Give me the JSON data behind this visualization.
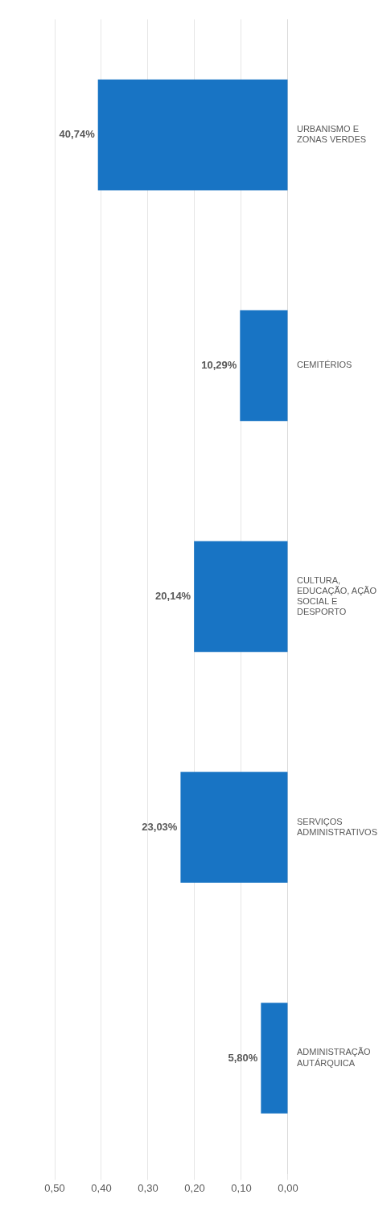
{
  "chart_data": {
    "type": "bar",
    "orientation": "horizontal",
    "categories": [
      "URBANISMO E ZONAS VERDES",
      "CEMITÉRIOS",
      "CULTURA, EDUCAÇÃO, AÇÃO SOCIAL E DESPORTO",
      "SERVIÇOS ADMINISTRATIVOS",
      "ADMINISTRAÇÃO AUTÁRQUICA"
    ],
    "values": [
      0.4074,
      0.1029,
      0.2014,
      0.2303,
      0.058
    ],
    "value_labels": [
      "40,74%",
      "10,29%",
      "20,14%",
      "23,03%",
      "5,80%"
    ],
    "color": "#1874c4",
    "xlim": [
      0.5,
      0
    ],
    "xticks": [
      {
        "value": 0.5,
        "label": "0,50"
      },
      {
        "value": 0.4,
        "label": "0,40"
      },
      {
        "value": 0.3,
        "label": "0,30"
      },
      {
        "value": 0.2,
        "label": "0,20"
      },
      {
        "value": 0.1,
        "label": "0,10"
      },
      {
        "value": 0,
        "label": "0,00"
      }
    ],
    "grid": "x"
  }
}
